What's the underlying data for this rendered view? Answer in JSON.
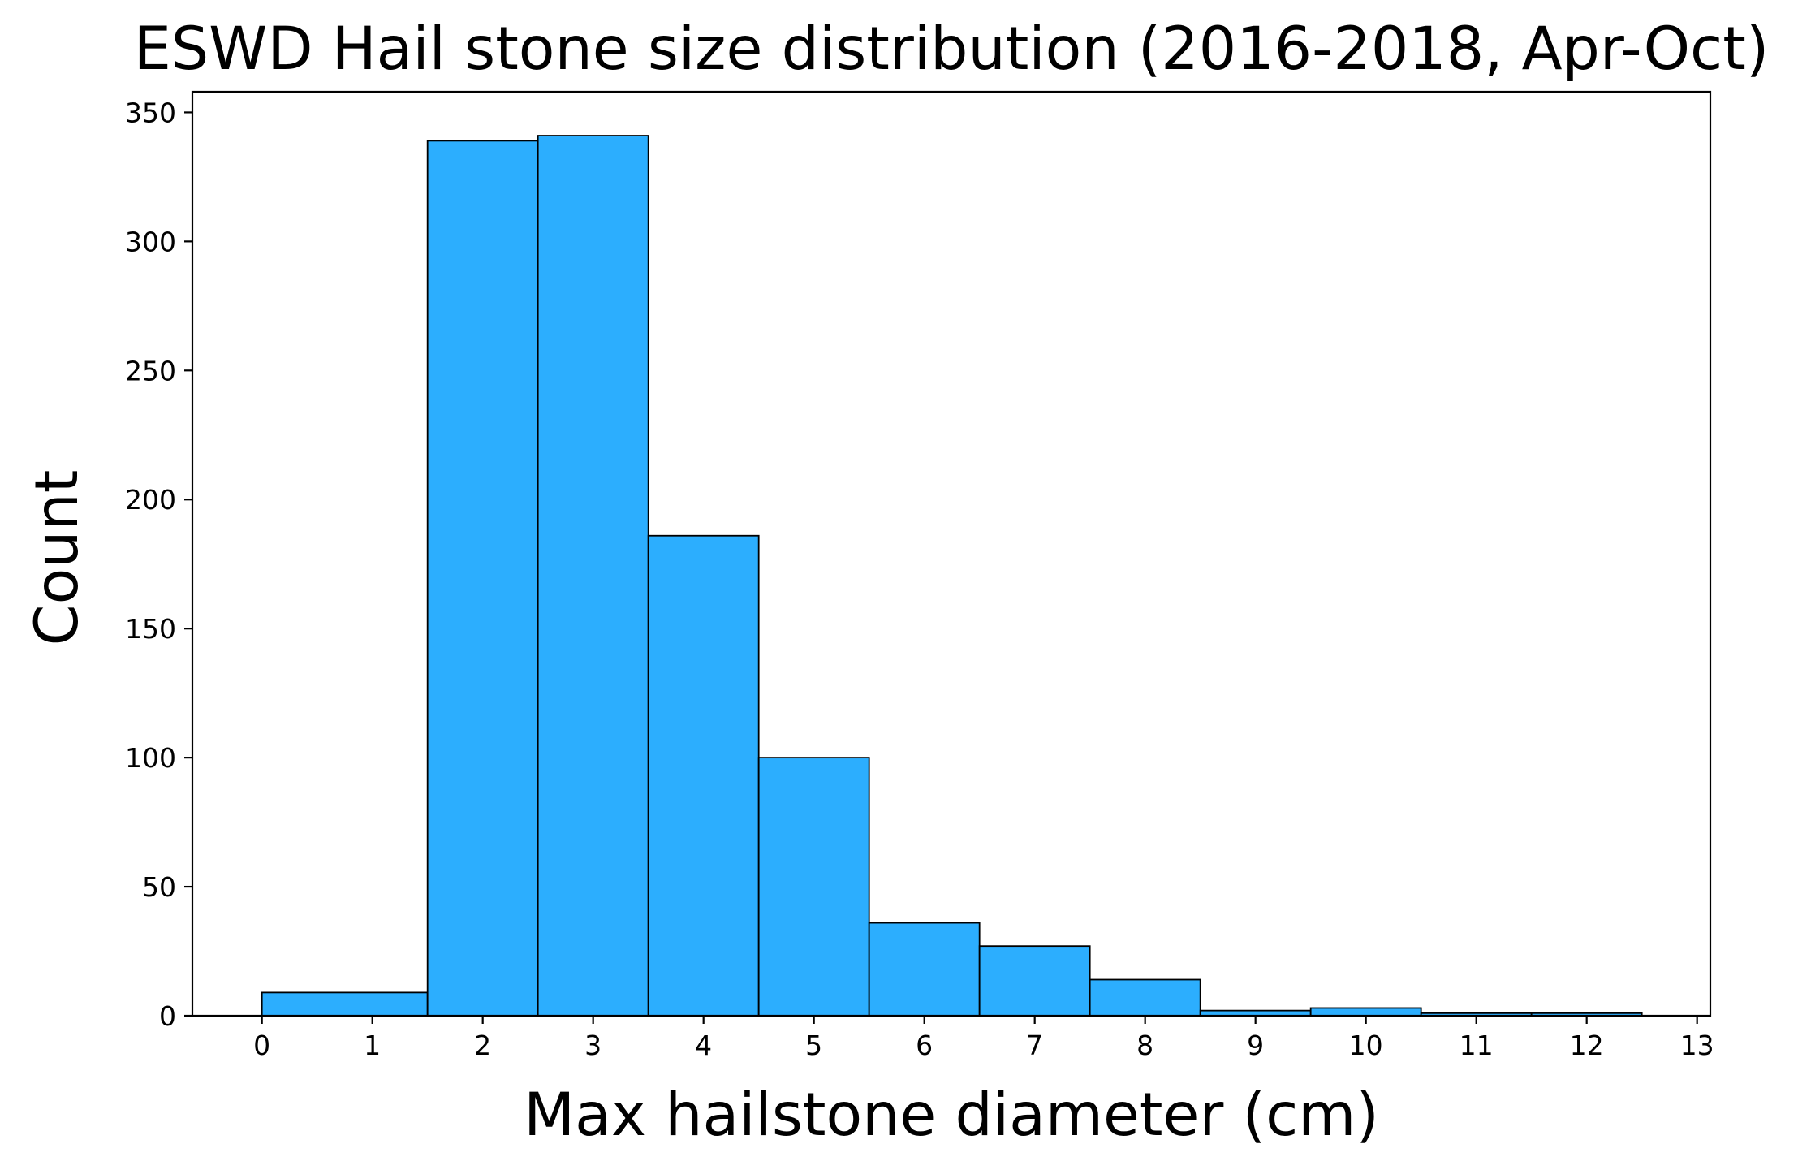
{
  "chart_data": {
    "type": "bar",
    "title": "ESWD Hail stone size distribution (2016-2018, Apr-Oct)",
    "xlabel": "Max hailstone diameter (cm)",
    "ylabel": "Count",
    "bins": [
      {
        "x0": 0.0,
        "x1": 1.5,
        "count": 9
      },
      {
        "x0": 1.5,
        "x1": 2.5,
        "count": 339
      },
      {
        "x0": 2.5,
        "x1": 3.5,
        "count": 341
      },
      {
        "x0": 3.5,
        "x1": 4.5,
        "count": 186
      },
      {
        "x0": 4.5,
        "x1": 5.5,
        "count": 100
      },
      {
        "x0": 5.5,
        "x1": 6.5,
        "count": 36
      },
      {
        "x0": 6.5,
        "x1": 7.5,
        "count": 27
      },
      {
        "x0": 7.5,
        "x1": 8.5,
        "count": 14
      },
      {
        "x0": 8.5,
        "x1": 9.5,
        "count": 2
      },
      {
        "x0": 9.5,
        "x1": 10.5,
        "count": 3
      },
      {
        "x0": 10.5,
        "x1": 11.5,
        "count": 1
      },
      {
        "x0": 11.5,
        "x1": 12.5,
        "count": 1
      }
    ],
    "xlim": [
      -0.63,
      13.12
    ],
    "ylim": [
      0,
      358
    ],
    "xticks": [
      "0",
      "1",
      "2",
      "3",
      "4",
      "5",
      "6",
      "7",
      "8",
      "9",
      "10",
      "11",
      "12",
      "13"
    ],
    "yticks": [
      "0",
      "50",
      "100",
      "150",
      "200",
      "250",
      "300",
      "350"
    ],
    "bar_color": "#2caefe",
    "grid": false,
    "legend": "none"
  }
}
